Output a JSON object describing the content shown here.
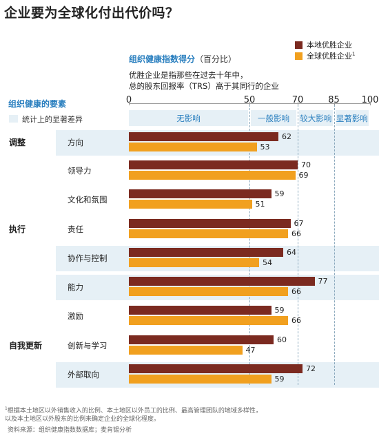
{
  "title": "企业要为全球化付出代价吗？",
  "legend": {
    "local": {
      "label": "本地优胜企业",
      "color": "#7b2a20"
    },
    "global": {
      "label": "全球优胜企业",
      "sup": "1",
      "color": "#f1a01f"
    }
  },
  "axis": {
    "title": "组织健康指数得分",
    "unit": "（百分比）",
    "desc_line1": "优胜企业是指那些在过去十年中，",
    "desc_line2": "总的股东回报率（TRS）高于其同行的企业"
  },
  "factors_heading": "组织健康的要素",
  "significance_label": "统计上的显著差异",
  "impact_bands": [
    {
      "label": "无影响",
      "from": 0,
      "to": 50
    },
    {
      "label": "一般影响",
      "from": 50,
      "to": 70
    },
    {
      "label": "较大影响",
      "from": 70,
      "to": 85
    },
    {
      "label": "显著影响",
      "from": 85,
      "to": 100
    }
  ],
  "groups": [
    {
      "label": "调整",
      "first_row": 0
    },
    {
      "label": "执行",
      "first_row": 3
    },
    {
      "label": "自我更新",
      "first_row": 7
    }
  ],
  "chart_data": {
    "type": "bar",
    "orientation": "horizontal",
    "title": "组织健康指数得分（百分比）",
    "xlim": [
      0,
      100
    ],
    "xticks": [
      0,
      50,
      70,
      85,
      100
    ],
    "categories": [
      "方向",
      "领导力",
      "文化和氛围",
      "责任",
      "协作与控制",
      "能力",
      "激励",
      "创新与学习",
      "外部取向"
    ],
    "significant": [
      true,
      false,
      false,
      false,
      true,
      true,
      false,
      false,
      true
    ],
    "series": [
      {
        "name": "本地优胜企业",
        "color": "#7b2a20",
        "values": [
          62,
          70,
          59,
          67,
          64,
          77,
          59,
          60,
          72
        ]
      },
      {
        "name": "全球优胜企业",
        "color": "#f1a01f",
        "values": [
          53,
          69,
          51,
          66,
          54,
          66,
          66,
          47,
          59
        ]
      }
    ]
  },
  "footnote": "根据本土地区以外销售收入的比例、本土地区以外员工的比例、最高管理团队的地域多样性，以及本土地区以外股东的比例来确定企业的全球化程度。",
  "footnote_marker": "1",
  "footnote_line1": "根据本土地区以外销售收入的比例、本土地区以外员工的比例、最高管理团队的地域多样性，",
  "footnote_line2": "以及本土地区以外股东的比例来确定企业的全球化程度。",
  "source": "资料来源：组织健康指数数据库；麦肯锡分析"
}
